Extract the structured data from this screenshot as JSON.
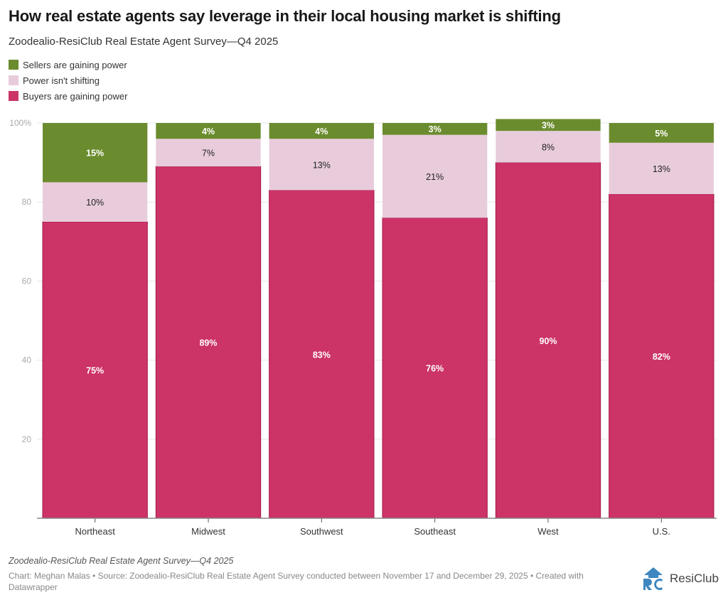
{
  "title": "How real estate agents say leverage in their local housing market is shifting",
  "subtitle": "Zoodealio-ResiClub Real Estate Agent Survey—Q4 2025",
  "notes": "Zoodealio-ResiClub Real Estate Agent Survey—Q4 2025",
  "source": "Chart: Meghan Malas • Source: Zoodealio-ResiClub Real Estate Agent Survey conducted between November 17 and December 29, 2025 • Created with Datawrapper",
  "logo": {
    "text": "ResiClub",
    "icon": "resiclub-logo-icon",
    "color": "#3d86c0"
  },
  "colors": {
    "sellers": "#6b8c2e",
    "neutral": "#e8ccdb",
    "buyers": "#cc3366",
    "buyers_border": "#a8184a"
  },
  "chart_data": {
    "type": "bar",
    "stacked": true,
    "title": "How real estate agents say leverage in their local housing market is shifting",
    "subtitle": "Zoodealio-ResiClub Real Estate Agent Survey—Q4 2025",
    "xlabel": "",
    "ylabel": "",
    "ylim": [
      0,
      100
    ],
    "yticks": [
      20,
      40,
      60,
      80,
      100
    ],
    "ytick_labels": [
      "20",
      "40",
      "60",
      "80",
      "100%"
    ],
    "grid": true,
    "legend_position": "top-left",
    "categories": [
      "Northeast",
      "Midwest",
      "Southwest",
      "Southeast",
      "West",
      "U.S."
    ],
    "series": [
      {
        "name": "Buyers are gaining power",
        "color": "#cc3366",
        "label_color": "#ffffff",
        "values": [
          75,
          89,
          83,
          76,
          90,
          82
        ],
        "labels": [
          "75%",
          "89%",
          "83%",
          "76%",
          "90%",
          "82%"
        ]
      },
      {
        "name": "Power isn't shifting",
        "color": "#e8ccdb",
        "label_color": "#222222",
        "values": [
          10,
          7,
          13,
          21,
          8,
          13
        ],
        "labels": [
          "10%",
          "7%",
          "13%",
          "21%",
          "8%",
          "13%"
        ]
      },
      {
        "name": "Sellers are gaining power",
        "color": "#6b8c2e",
        "label_color": "#ffffff",
        "values": [
          15,
          4,
          4,
          3,
          3,
          5
        ],
        "labels": [
          "15%",
          "4%",
          "4%",
          "3%",
          "3%",
          "5%"
        ]
      }
    ],
    "legend": [
      "Sellers are gaining power",
      "Power isn't shifting",
      "Buyers are gaining power"
    ]
  }
}
